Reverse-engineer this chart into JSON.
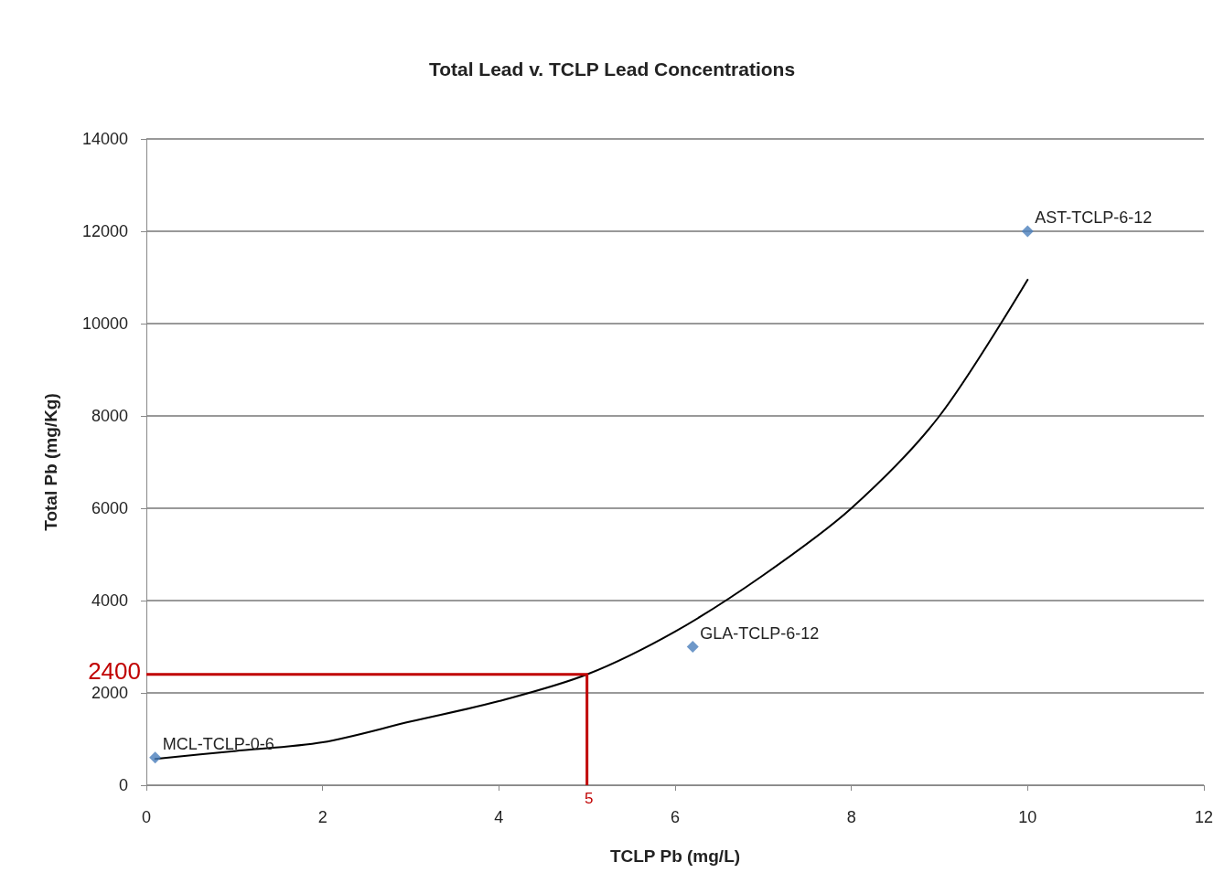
{
  "chart_data": {
    "type": "scatter",
    "title": "Total Lead v. TCLP Lead Concentrations",
    "xlabel": "TCLP Pb (mg/L)",
    "ylabel": "Total Pb (mg/Kg)",
    "xlim": [
      0,
      12
    ],
    "xticks": [
      0,
      2,
      4,
      6,
      8,
      10,
      12
    ],
    "ylim": [
      0,
      14000
    ],
    "yticks": [
      0,
      2000,
      4000,
      6000,
      8000,
      10000,
      12000,
      14000
    ],
    "grid": "y",
    "series": [
      {
        "marker": "diamond",
        "color": "#4a7ebb",
        "x": [
          0.1,
          6.2,
          10
        ],
        "values": [
          600,
          3000,
          12000
        ]
      },
      {
        "type": "line",
        "marker": "none",
        "color": "#000000",
        "x": [
          0.1,
          1,
          2,
          3,
          4,
          5,
          6,
          7,
          8,
          9,
          10
        ],
        "values": [
          570,
          740,
          930,
          1380,
          1820,
          2400,
          3330,
          4550,
          6000,
          8000,
          10950
        ]
      },
      {
        "type": "step",
        "marker": "none",
        "color": "#c00000",
        "x": [
          0,
          5
        ],
        "values": [
          2400,
          0
        ]
      }
    ],
    "annotations": [
      {
        "text": "MCL-TCLP-0-6",
        "x": 0.1,
        "y": 600
      },
      {
        "text": "GLA-TCLP-6-12",
        "x": 6.2,
        "y": 3000
      },
      {
        "text": "AST-TCLP-6-12",
        "x": 10,
        "y": 12000
      },
      {
        "text": "2400",
        "x": 0,
        "y": 2400
      },
      {
        "text": "5",
        "x": 5,
        "y": 0
      }
    ]
  }
}
